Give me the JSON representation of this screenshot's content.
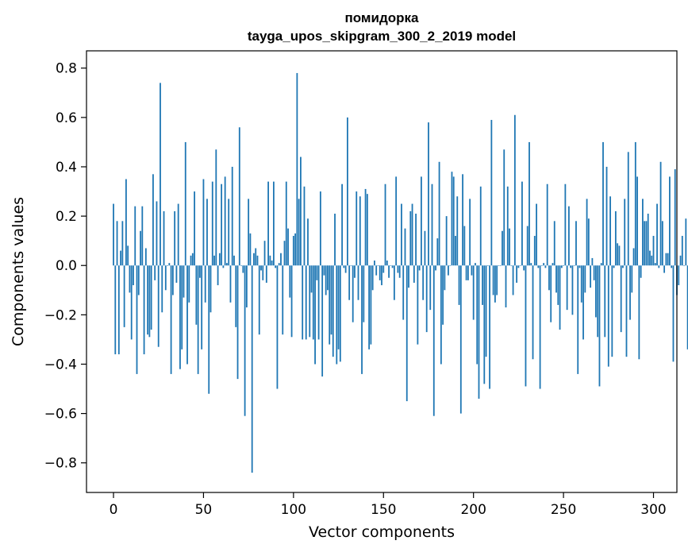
{
  "chart_data": {
    "type": "bar",
    "title": "помидорка",
    "subtitle": "tayga_upos_skipgram_300_2_2019 model",
    "xlabel": "Vector components",
    "ylabel": "Components values",
    "xlim": [
      -15,
      313
    ],
    "ylim": [
      -0.92,
      0.87
    ],
    "xticks": [
      0,
      50,
      100,
      150,
      200,
      250,
      300
    ],
    "yticks": [
      -0.8,
      -0.6,
      -0.4,
      -0.2,
      0.0,
      0.2,
      0.4,
      0.6,
      0.8
    ],
    "ytick_labels": [
      "−0.8",
      "−0.6",
      "−0.4",
      "−0.2",
      "0.0",
      "0.2",
      "0.4",
      "0.6",
      "0.8"
    ],
    "bar_color": "#1f77b4",
    "grid": false,
    "values": [
      0.25,
      -0.36,
      0.18,
      -0.36,
      0.06,
      0.18,
      -0.25,
      0.35,
      0.08,
      -0.11,
      -0.3,
      -0.08,
      0.24,
      -0.44,
      -0.12,
      0.14,
      0.24,
      -0.36,
      0.07,
      -0.28,
      -0.29,
      -0.26,
      0.37,
      -0.06,
      0.26,
      -0.33,
      0.74,
      -0.19,
      0.22,
      -0.1,
      0.0,
      0.01,
      -0.44,
      -0.12,
      0.22,
      -0.07,
      0.25,
      -0.42,
      -0.34,
      -0.13,
      0.5,
      -0.4,
      -0.15,
      0.04,
      0.05,
      0.3,
      -0.24,
      -0.44,
      -0.05,
      -0.34,
      0.35,
      -0.15,
      0.27,
      -0.52,
      -0.19,
      0.34,
      0.04,
      0.47,
      -0.08,
      0.05,
      0.33,
      -0.01,
      0.36,
      0.01,
      0.27,
      -0.15,
      0.4,
      0.04,
      -0.25,
      -0.46,
      0.56,
      0.0,
      -0.03,
      -0.61,
      -0.17,
      0.27,
      0.13,
      -0.84,
      0.05,
      0.07,
      0.04,
      -0.28,
      -0.02,
      -0.06,
      0.1,
      -0.07,
      0.34,
      0.04,
      0.02,
      0.34,
      -0.01,
      -0.5,
      0.01,
      0.05,
      -0.28,
      0.1,
      0.34,
      0.15,
      -0.13,
      -0.29,
      0.12,
      0.13,
      0.78,
      0.27,
      0.44,
      -0.3,
      0.32,
      -0.3,
      0.19,
      -0.29,
      -0.11,
      -0.3,
      -0.4,
      -0.06,
      -0.3,
      0.3,
      -0.45,
      -0.04,
      -0.12,
      -0.1,
      -0.32,
      -0.28,
      -0.37,
      0.21,
      -0.4,
      -0.34,
      -0.39,
      0.33,
      -0.01,
      -0.03,
      0.6,
      -0.14,
      0.0,
      -0.23,
      -0.05,
      0.3,
      -0.14,
      0.28,
      -0.44,
      -0.23,
      0.31,
      0.29,
      -0.34,
      -0.32,
      -0.1,
      0.02,
      -0.04,
      0.0,
      -0.06,
      -0.08,
      -0.03,
      0.33,
      0.02,
      -0.05,
      0.0,
      -0.01,
      -0.14,
      0.36,
      -0.03,
      -0.05,
      0.25,
      -0.22,
      0.15,
      -0.55,
      -0.09,
      0.22,
      0.25,
      -0.07,
      0.21,
      -0.32,
      -0.02,
      0.36,
      -0.14,
      0.14,
      -0.27,
      0.58,
      -0.18,
      0.33,
      -0.61,
      -0.02,
      0.11,
      0.42,
      -0.4,
      -0.24,
      -0.1,
      0.2,
      -0.04,
      0.0,
      0.38,
      0.36,
      0.12,
      0.28,
      -0.16,
      -0.6,
      0.37,
      0.16,
      -0.06,
      -0.06,
      0.27,
      -0.04,
      -0.22,
      0.01,
      -0.4,
      -0.54,
      0.32,
      -0.16,
      -0.48,
      -0.37,
      0.0,
      -0.5,
      0.59,
      -0.12,
      -0.15,
      -0.12,
      0.0,
      0.0,
      0.14,
      0.47,
      -0.17,
      0.32,
      0.15,
      0.0,
      -0.12,
      0.61,
      -0.07,
      -0.01,
      0.0,
      0.34,
      -0.02,
      -0.49,
      0.16,
      0.5,
      0.01,
      -0.38,
      0.12,
      0.25,
      -0.01,
      -0.5,
      0.0,
      0.01,
      -0.01,
      0.33,
      -0.1,
      -0.23,
      0.01,
      0.18,
      -0.11,
      -0.16,
      -0.26,
      -0.01,
      0.0,
      0.33,
      -0.18,
      0.24,
      -0.01,
      -0.2,
      0.0,
      0.18,
      -0.44,
      -0.01,
      -0.15,
      -0.3,
      -0.11,
      0.27,
      0.19,
      -0.09,
      0.03,
      -0.06,
      -0.21,
      -0.29,
      -0.49,
      0.01,
      0.5,
      -0.29,
      0.4,
      -0.41,
      0.28,
      -0.37,
      -0.01,
      0.22,
      0.09,
      0.08,
      -0.27,
      -0.01,
      0.27,
      -0.37,
      0.46,
      -0.22,
      -0.11,
      0.07,
      0.5,
      0.36,
      -0.38,
      -0.05,
      0.27,
      0.18,
      0.18,
      0.21,
      0.06,
      0.04,
      0.12,
      0.01,
      0.25,
      -0.01,
      0.42,
      0.18,
      -0.03,
      0.05,
      0.05,
      0.36,
      -0.01,
      -0.39,
      0.39,
      -0.12,
      -0.08,
      0.04,
      0.12,
      0.0,
      0.19,
      -0.34
    ]
  }
}
